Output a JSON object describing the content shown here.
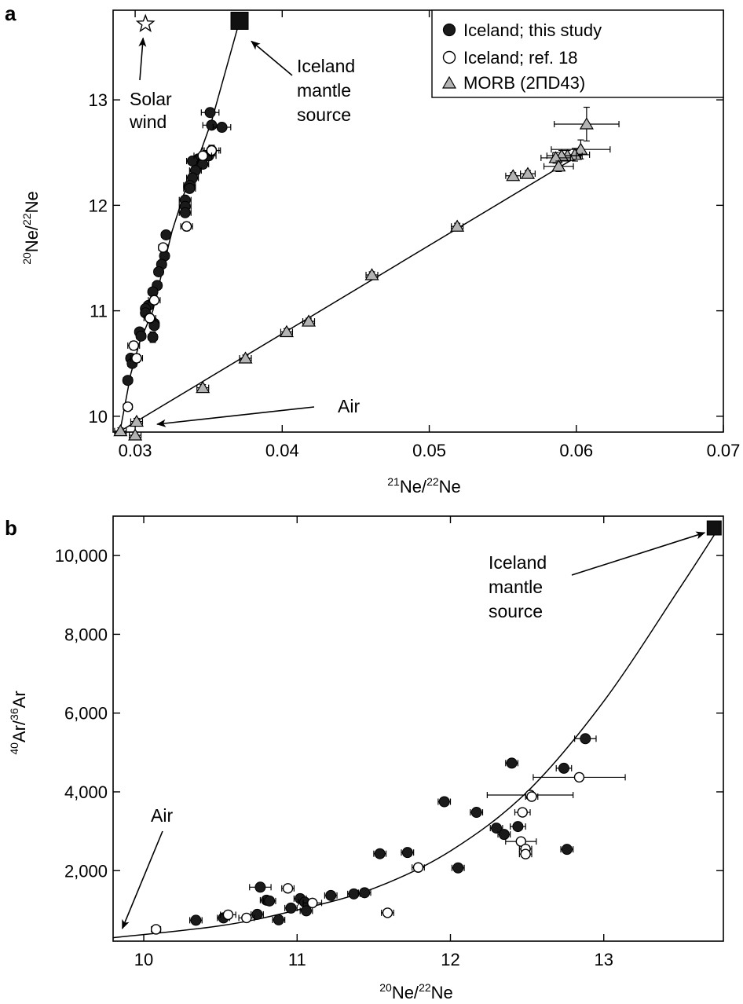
{
  "chart_data": [
    {
      "panel": "a",
      "type": "scatter",
      "xlabel": {
        "sup": "21",
        "base": "Ne/",
        "sup2": "22",
        "base2": "Ne"
      },
      "ylabel": {
        "sup": "20",
        "base": "Ne/",
        "sup2": "22",
        "base2": "Ne"
      },
      "xlim": [
        0.0285,
        0.07
      ],
      "ylim": [
        9.85,
        13.85
      ],
      "x_ticks": [
        0.03,
        0.04,
        0.05,
        0.06,
        0.07
      ],
      "x_tick_labels": [
        "0.03",
        "0.04",
        "0.05",
        "0.06",
        "0.07"
      ],
      "y_ticks": [
        10,
        11,
        12,
        13
      ],
      "y_tick_labels": [
        "10",
        "11",
        "12",
        "13"
      ],
      "legend": {
        "placement": "top-right",
        "entries": [
          {
            "marker": "filled-circle",
            "label": "Iceland; this study"
          },
          {
            "marker": "open-circle",
            "label": "Iceland; ref. 18"
          },
          {
            "marker": "gray-triangle",
            "label": "MORB (2ΠD43)"
          }
        ]
      },
      "annotations": {
        "solar_wind": {
          "lines": [
            "Solar",
            "wind"
          ],
          "point": [
            0.0307,
            13.72
          ]
        },
        "iceland_source": {
          "lines": [
            "Iceland",
            "mantle",
            "source"
          ],
          "point": [
            0.0371,
            13.75
          ]
        },
        "air": {
          "text": "Air",
          "point": [
            0.029,
            9.9
          ]
        }
      },
      "lines": [
        {
          "name": "Iceland",
          "points": [
            [
              0.029,
              9.88
            ],
            [
              0.0297,
              10.4
            ],
            [
              0.0303,
              10.7
            ],
            [
              0.0312,
              11.0
            ],
            [
              0.0318,
              11.35
            ],
            [
              0.0325,
              11.75
            ],
            [
              0.0333,
              12.1
            ],
            [
              0.0343,
              12.45
            ],
            [
              0.0352,
              12.8
            ],
            [
              0.0371,
              13.75
            ]
          ]
        },
        {
          "name": "MORB",
          "points": [
            [
              0.029,
              9.86
            ],
            [
              0.0605,
              12.5
            ]
          ]
        }
      ],
      "series": [
        {
          "name": "Iceland; this study",
          "marker": "filled-circle",
          "points": [
            [
              0.0351,
              12.88,
              0.0006,
              0.04
            ],
            [
              0.0352,
              12.76,
              0.0006,
              0.03
            ],
            [
              0.0359,
              12.74,
              0.0006,
              0.03
            ],
            [
              0.0352,
              12.52,
              0.0005,
              0.04
            ],
            [
              0.035,
              12.47,
              0.0005,
              0.04
            ],
            [
              0.0343,
              12.44,
              0.0005,
              0.04
            ],
            [
              0.0339,
              12.42,
              0.0004,
              0.03
            ],
            [
              0.0346,
              12.39,
              0.0004,
              0.04
            ],
            [
              0.0341,
              12.33,
              0.0004,
              0.03
            ],
            [
              0.0339,
              12.26,
              0.0004,
              0.03
            ],
            [
              0.0337,
              12.19,
              0.0004,
              0.03
            ],
            [
              0.0337,
              12.16,
              0.0004,
              0.03
            ],
            [
              0.0334,
              12.05,
              0.0004,
              0.03
            ],
            [
              0.0334,
              11.99,
              0.0004,
              0.03
            ],
            [
              0.0334,
              11.93,
              0.0004,
              0.03
            ],
            [
              0.0321,
              11.72,
              0.0003,
              0.03
            ],
            [
              0.032,
              11.52,
              0.0003,
              0.03
            ],
            [
              0.0318,
              11.44,
              0.0003,
              0.03
            ],
            [
              0.0316,
              11.37,
              0.0003,
              0.03
            ],
            [
              0.0315,
              11.24,
              0.0003,
              0.03
            ],
            [
              0.0312,
              11.18,
              0.0003,
              0.03
            ],
            [
              0.0309,
              11.05,
              0.0003,
              0.03
            ],
            [
              0.0307,
              11.02,
              0.0003,
              0.03
            ],
            [
              0.0307,
              10.98,
              0.0003,
              0.03
            ],
            [
              0.0313,
              10.88,
              0.0003,
              0.03
            ],
            [
              0.0313,
              10.86,
              0.0003,
              0.03
            ],
            [
              0.0303,
              10.8,
              0.0003,
              0.03
            ],
            [
              0.0304,
              10.76,
              0.0003,
              0.03
            ],
            [
              0.0312,
              10.75,
              0.0003,
              0.05
            ],
            [
              0.0297,
              10.55,
              0.0003,
              0.03
            ],
            [
              0.0298,
              10.5,
              0.0003,
              0.03
            ],
            [
              0.0295,
              10.34,
              0.0003,
              0.03
            ]
          ]
        },
        {
          "name": "Iceland; ref. 18",
          "marker": "open-circle",
          "points": [
            [
              0.0352,
              12.52,
              0.0006,
              0.05
            ],
            [
              0.0346,
              12.47,
              0.0006,
              0.04
            ],
            [
              0.0335,
              11.8,
              0.0004,
              0.04
            ],
            [
              0.0319,
              11.6,
              0.0003,
              0.03
            ],
            [
              0.0313,
              11.1,
              0.0004,
              0.04
            ],
            [
              0.031,
              10.93,
              0.0004,
              0.04
            ],
            [
              0.0299,
              10.67,
              0.0004,
              0.04
            ],
            [
              0.0301,
              10.55,
              0.0004,
              0.04
            ],
            [
              0.0295,
              10.09,
              0.0003,
              0.03
            ]
          ]
        },
        {
          "name": "MORB (2ΠD43)",
          "marker": "gray-triangle",
          "points": [
            [
              0.0607,
              12.77,
              0.0022,
              0.16
            ],
            [
              0.0603,
              12.53,
              0.002,
              0.09
            ],
            [
              0.0599,
              12.48,
              0.001,
              0.06
            ],
            [
              0.0594,
              12.47,
              0.001,
              0.05
            ],
            [
              0.059,
              12.47,
              0.001,
              0.05
            ],
            [
              0.0586,
              12.45,
              0.001,
              0.05
            ],
            [
              0.0588,
              12.37,
              0.001,
              0.05
            ],
            [
              0.0567,
              12.3,
              0.0005,
              0.03
            ],
            [
              0.0557,
              12.28,
              0.0005,
              0.03
            ],
            [
              0.0519,
              11.8,
              0.0004,
              0.03
            ],
            [
              0.0461,
              11.34,
              0.0004,
              0.03
            ],
            [
              0.0418,
              10.9,
              0.0004,
              0.03
            ],
            [
              0.0403,
              10.8,
              0.0004,
              0.03
            ],
            [
              0.0375,
              10.55,
              0.0004,
              0.03
            ],
            [
              0.0346,
              10.27,
              0.0004,
              0.03
            ],
            [
              0.0301,
              9.95,
              0.0004,
              0.03
            ],
            [
              0.03,
              9.82,
              0.0004,
              0.03
            ],
            [
              0.029,
              9.86,
              0.0004,
              0.03
            ]
          ]
        }
      ],
      "end_member": {
        "label": "Iceland mantle source",
        "x": 0.0371,
        "y": 13.75,
        "marker": "filled-square"
      },
      "solar_wind_point": {
        "x": 0.0307,
        "y": 13.72,
        "marker": "open-star"
      }
    },
    {
      "panel": "b",
      "type": "scatter",
      "xlabel": {
        "sup": "20",
        "base": "Ne/",
        "sup2": "22",
        "base2": "Ne"
      },
      "ylabel": {
        "sup": "40",
        "base": "Ar/",
        "sup2": "36",
        "base2": "Ar"
      },
      "xlim": [
        9.8,
        13.78
      ],
      "ylim": [
        210,
        11000
      ],
      "x_ticks": [
        10,
        11,
        12,
        13
      ],
      "x_tick_labels": [
        "10",
        "11",
        "12",
        "13"
      ],
      "y_ticks": [
        2000,
        4000,
        6000,
        8000,
        10000
      ],
      "y_tick_labels": [
        "2,000",
        "4,000",
        "6,000",
        "8,000",
        "10,000"
      ],
      "annotations": {
        "iceland_source": {
          "lines": [
            "Iceland",
            "mantle",
            "source"
          ],
          "point": [
            13.72,
            10700
          ]
        },
        "air": {
          "text": "Air",
          "point": [
            9.86,
            330
          ]
        }
      },
      "curve": {
        "x_start": 9.8,
        "x_end": 13.75,
        "points": [
          [
            9.8,
            296
          ],
          [
            10.5,
            600
          ],
          [
            11.0,
            1000
          ],
          [
            11.5,
            1550
          ],
          [
            12.0,
            2500
          ],
          [
            12.5,
            4000
          ],
          [
            13.0,
            6300
          ],
          [
            13.5,
            9200
          ],
          [
            13.75,
            10700
          ]
        ]
      },
      "series": [
        {
          "name": "Iceland; this study",
          "marker": "filled-circle",
          "points": [
            [
              12.88,
              5350,
              0.07,
              60
            ],
            [
              12.74,
              4600,
              0.05,
              80
            ],
            [
              12.4,
              4730,
              0.04,
              80
            ],
            [
              11.96,
              3750,
              0.04,
              80
            ],
            [
              12.17,
              3480,
              0.04,
              80
            ],
            [
              12.3,
              3080,
              0.04,
              60
            ],
            [
              12.44,
              3120,
              0.05,
              60
            ],
            [
              12.35,
              2920,
              0.04,
              60
            ],
            [
              12.76,
              2540,
              0.04,
              60
            ],
            [
              11.72,
              2460,
              0.04,
              60
            ],
            [
              11.54,
              2430,
              0.04,
              60
            ],
            [
              12.05,
              2070,
              0.04,
              60
            ],
            [
              10.76,
              1580,
              0.07,
              40
            ],
            [
              10.8,
              1250,
              0.04,
              40
            ],
            [
              10.82,
              1230,
              0.04,
              40
            ],
            [
              11.02,
              1290,
              0.04,
              40
            ],
            [
              11.05,
              1200,
              0.04,
              40
            ],
            [
              11.22,
              1370,
              0.04,
              40
            ],
            [
              11.37,
              1410,
              0.04,
              40
            ],
            [
              11.44,
              1440,
              0.04,
              40
            ],
            [
              10.96,
              1050,
              0.04,
              40
            ],
            [
              11.06,
              980,
              0.04,
              40
            ],
            [
              10.74,
              890,
              0.04,
              40
            ],
            [
              10.52,
              800,
              0.04,
              40
            ],
            [
              10.34,
              740,
              0.04,
              40
            ],
            [
              10.88,
              750,
              0.04,
              40
            ]
          ]
        },
        {
          "name": "Iceland; ref. 18",
          "marker": "open-circle",
          "points": [
            [
              12.84,
              4370,
              0.3,
              100
            ],
            [
              12.52,
              3920,
              0.28,
              100
            ],
            [
              12.53,
              3880,
              0.04,
              60
            ],
            [
              12.47,
              3480,
              0.05,
              60
            ],
            [
              12.46,
              2740,
              0.1,
              60
            ],
            [
              12.49,
              2550,
              0.04,
              60
            ],
            [
              12.49,
              2420,
              0.04,
              60
            ],
            [
              11.79,
              2080,
              0.04,
              60
            ],
            [
              10.94,
              1550,
              0.04,
              40
            ],
            [
              11.1,
              1180,
              0.06,
              40
            ],
            [
              10.55,
              880,
              0.05,
              40
            ],
            [
              10.67,
              800,
              0.05,
              40
            ],
            [
              11.59,
              930,
              0.04,
              40
            ],
            [
              10.08,
              510,
              0.03,
              30
            ]
          ]
        }
      ],
      "end_member": {
        "label": "Iceland mantle source",
        "x": 13.72,
        "y": 10700,
        "marker": "filled-square"
      }
    }
  ],
  "labels": {
    "panel_a": "a",
    "panel_b": "b"
  },
  "colors": {
    "filled": "#1a1a1a",
    "open": "#ffffff",
    "triangle": "#b3b3b3",
    "stroke": "#000000"
  }
}
